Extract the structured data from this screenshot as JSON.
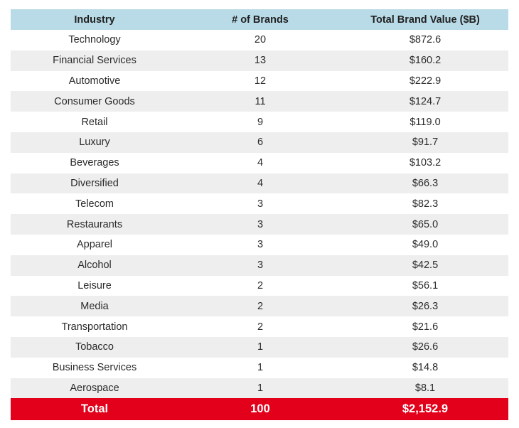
{
  "header": {
    "industry": "Industry",
    "brands": "# of Brands",
    "value": "Total Brand Value ($B)"
  },
  "rows": [
    {
      "industry": "Technology",
      "brands": "20",
      "value": "$872.6"
    },
    {
      "industry": "Financial Services",
      "brands": "13",
      "value": "$160.2"
    },
    {
      "industry": "Automotive",
      "brands": "12",
      "value": "$222.9"
    },
    {
      "industry": "Consumer Goods",
      "brands": "11",
      "value": "$124.7"
    },
    {
      "industry": "Retail",
      "brands": "9",
      "value": "$119.0"
    },
    {
      "industry": "Luxury",
      "brands": "6",
      "value": "$91.7"
    },
    {
      "industry": "Beverages",
      "brands": "4",
      "value": "$103.2"
    },
    {
      "industry": "Diversified",
      "brands": "4",
      "value": "$66.3"
    },
    {
      "industry": "Telecom",
      "brands": "3",
      "value": "$82.3"
    },
    {
      "industry": "Restaurants",
      "brands": "3",
      "value": "$65.0"
    },
    {
      "industry": "Apparel",
      "brands": "3",
      "value": "$49.0"
    },
    {
      "industry": "Alcohol",
      "brands": "3",
      "value": "$42.5"
    },
    {
      "industry": "Leisure",
      "brands": "2",
      "value": "$56.1"
    },
    {
      "industry": "Media",
      "brands": "2",
      "value": "$26.3"
    },
    {
      "industry": "Transportation",
      "brands": "2",
      "value": "$21.6"
    },
    {
      "industry": "Tobacco",
      "brands": "1",
      "value": "$26.6"
    },
    {
      "industry": "Business Services",
      "brands": "1",
      "value": "$14.8"
    },
    {
      "industry": "Aerospace",
      "brands": "1",
      "value": "$8.1"
    }
  ],
  "total": {
    "label": "Total",
    "brands": "100",
    "value": "$2,152.9"
  },
  "colors": {
    "header_bg": "#b9dbe7",
    "alt_row_bg": "#eeeeee",
    "total_bg": "#e2001a"
  }
}
